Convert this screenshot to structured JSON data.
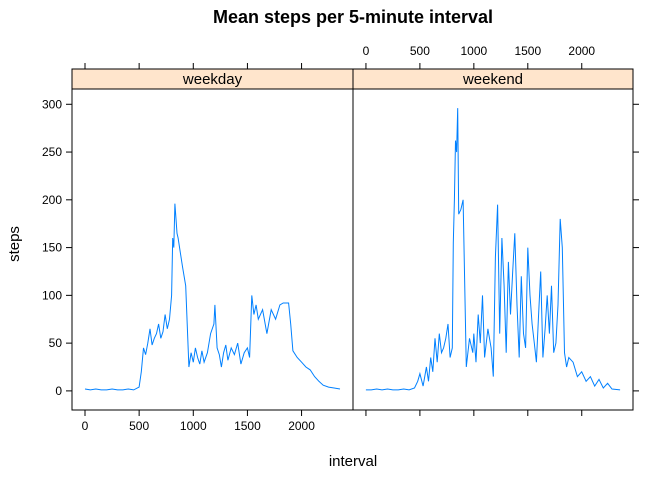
{
  "chart_data": {
    "type": "line",
    "title": "Mean steps per 5-minute interval",
    "xlabel": "interval",
    "ylabel": "steps",
    "xlim": [
      -120,
      2475
    ],
    "ylim": [
      -20,
      316
    ],
    "x_ticks": [
      0,
      500,
      1000,
      1500,
      2000
    ],
    "y_ticks": [
      0,
      50,
      100,
      150,
      200,
      250,
      300
    ],
    "line_color": "#0080ff",
    "strip_color": "#ffe5cc",
    "panels": [
      {
        "name": "weekday",
        "series": [
          {
            "x": [
              0,
              50,
              100,
              150,
              200,
              250,
              300,
              350,
              400,
              450,
              500,
              520,
              540,
              560,
              580,
              600,
              620,
              640,
              660,
              680,
              700,
              720,
              740,
              760,
              780,
              800,
              810,
              820,
              830,
              840,
              850,
              860,
              880,
              900,
              930,
              960,
              980,
              1000,
              1020,
              1040,
              1060,
              1080,
              1100,
              1130,
              1160,
              1190,
              1200,
              1220,
              1240,
              1260,
              1280,
              1300,
              1320,
              1350,
              1380,
              1410,
              1440,
              1470,
              1500,
              1520,
              1540,
              1560,
              1580,
              1600,
              1640,
              1680,
              1720,
              1760,
              1800,
              1830,
              1860,
              1880,
              1900,
              1920,
              1960,
              2000,
              2040,
              2080,
              2120,
              2160,
              2200,
              2250,
              2300,
              2355
            ],
            "y": [
              2,
              1,
              2,
              1,
              1,
              2,
              1,
              1,
              2,
              1,
              4,
              20,
              45,
              38,
              50,
              65,
              48,
              55,
              60,
              70,
              55,
              62,
              80,
              65,
              75,
              100,
              160,
              150,
              196,
              180,
              165,
              160,
              145,
              130,
              110,
              25,
              40,
              30,
              45,
              35,
              28,
              42,
              30,
              40,
              60,
              70,
              90,
              45,
              38,
              25,
              40,
              48,
              32,
              45,
              38,
              50,
              28,
              40,
              45,
              35,
              100,
              80,
              90,
              75,
              85,
              60,
              85,
              75,
              90,
              92,
              92,
              92,
              70,
              42,
              35,
              30,
              25,
              22,
              15,
              10,
              6,
              4,
              3,
              2
            ]
          }
        ]
      },
      {
        "name": "weekend",
        "series": [
          {
            "x": [
              0,
              50,
              100,
              150,
              200,
              250,
              300,
              350,
              400,
              450,
              480,
              500,
              530,
              560,
              580,
              600,
              620,
              640,
              660,
              680,
              700,
              720,
              740,
              760,
              780,
              800,
              810,
              820,
              830,
              840,
              850,
              860,
              880,
              900,
              930,
              960,
              990,
              1000,
              1020,
              1040,
              1060,
              1080,
              1100,
              1130,
              1160,
              1180,
              1200,
              1220,
              1240,
              1260,
              1280,
              1300,
              1320,
              1340,
              1360,
              1380,
              1400,
              1420,
              1440,
              1460,
              1480,
              1500,
              1520,
              1540,
              1560,
              1580,
              1600,
              1620,
              1640,
              1660,
              1680,
              1700,
              1720,
              1740,
              1760,
              1780,
              1800,
              1820,
              1840,
              1860,
              1880,
              1920,
              1960,
              2000,
              2040,
              2080,
              2120,
              2160,
              2200,
              2240,
              2280,
              2355
            ],
            "y": [
              1,
              1,
              2,
              1,
              2,
              1,
              1,
              2,
              1,
              3,
              10,
              18,
              5,
              25,
              10,
              35,
              20,
              55,
              30,
              60,
              40,
              45,
              55,
              70,
              35,
              45,
              155,
              200,
              262,
              250,
              296,
              185,
              190,
              200,
              25,
              55,
              40,
              60,
              30,
              80,
              50,
              100,
              35,
              65,
              45,
              15,
              140,
              195,
              60,
              160,
              110,
              40,
              135,
              80,
              125,
              165,
              90,
              35,
              120,
              60,
              45,
              150,
              100,
              70,
              50,
              30,
              80,
              125,
              35,
              65,
              100,
              60,
              110,
              40,
              50,
              90,
              180,
              150,
              40,
              25,
              35,
              30,
              15,
              20,
              10,
              15,
              5,
              12,
              3,
              8,
              2,
              1
            ]
          }
        ]
      }
    ]
  }
}
